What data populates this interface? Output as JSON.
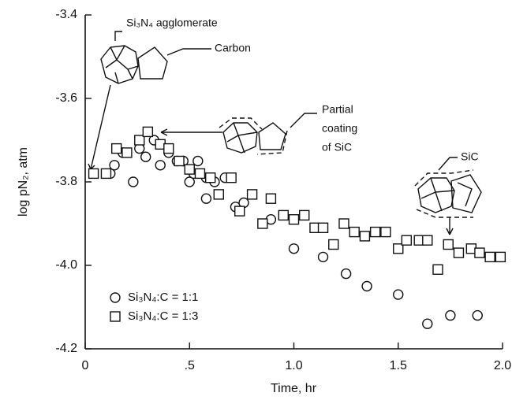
{
  "chart_data": {
    "type": "scatter",
    "x_label": "Time, hr",
    "y_label": "log pN₂, atm",
    "xlim": [
      0,
      2.0
    ],
    "ylim": [
      -4.2,
      -3.4
    ],
    "xticks": [
      0,
      {
        "value": 0.5,
        "label": ".5"
      },
      {
        "value": 1.0,
        "label": "1.0"
      },
      {
        "value": 1.5,
        "label": "1.5"
      },
      {
        "value": 2.0,
        "label": "2.0"
      }
    ],
    "yticks": [
      -4.2,
      {
        "value": -4.0,
        "label": "-4.0"
      },
      -3.8,
      -3.6,
      -3.4
    ],
    "legend": "lower left",
    "annotations": [
      "Si₃N₄ agglomerate",
      "Carbon",
      "Partial",
      "coating",
      "of SiC",
      "SiC"
    ],
    "series": [
      {
        "name": "Si₃N₄:C = 1:1",
        "marker": "circle",
        "color": "#111111",
        "x": [
          0.12,
          0.14,
          0.18,
          0.23,
          0.26,
          0.29,
          0.33,
          0.36,
          0.4,
          0.44,
          0.47,
          0.5,
          0.52,
          0.54,
          0.58,
          0.58,
          0.62,
          0.67,
          0.72,
          0.76,
          0.89,
          1.0,
          1.14,
          1.25,
          1.35,
          1.5,
          1.64,
          1.75,
          1.88
        ],
        "values": [
          -3.78,
          -3.76,
          -3.73,
          -3.8,
          -3.72,
          -3.74,
          -3.7,
          -3.76,
          -3.73,
          -3.75,
          -3.75,
          -3.8,
          -3.78,
          -3.75,
          -3.79,
          -3.84,
          -3.8,
          -3.79,
          -3.86,
          -3.85,
          -3.89,
          -3.96,
          -3.98,
          -4.02,
          -4.05,
          -4.07,
          -4.14,
          -4.12,
          -4.12
        ]
      },
      {
        "name": "Si₃N₄:C = 1:3",
        "marker": "square",
        "color": "#111111",
        "x": [
          0.04,
          0.1,
          0.15,
          0.2,
          0.26,
          0.3,
          0.36,
          0.4,
          0.45,
          0.5,
          0.55,
          0.6,
          0.64,
          0.7,
          0.74,
          0.8,
          0.85,
          0.89,
          0.95,
          1.0,
          1.05,
          1.1,
          1.14,
          1.19,
          1.24,
          1.29,
          1.34,
          1.39,
          1.44,
          1.5,
          1.54,
          1.6,
          1.64,
          1.69,
          1.74,
          1.79,
          1.85,
          1.89,
          1.94,
          1.99
        ],
        "values": [
          -3.78,
          -3.78,
          -3.72,
          -3.73,
          -3.7,
          -3.68,
          -3.71,
          -3.72,
          -3.75,
          -3.77,
          -3.78,
          -3.79,
          -3.83,
          -3.79,
          -3.87,
          -3.83,
          -3.9,
          -3.84,
          -3.88,
          -3.89,
          -3.88,
          -3.91,
          -3.91,
          -3.95,
          -3.9,
          -3.92,
          -3.93,
          -3.92,
          -3.92,
          -3.96,
          -3.94,
          -3.94,
          -3.94,
          -4.01,
          -3.95,
          -3.97,
          -3.96,
          -3.97,
          -3.98,
          -3.98
        ]
      }
    ]
  }
}
